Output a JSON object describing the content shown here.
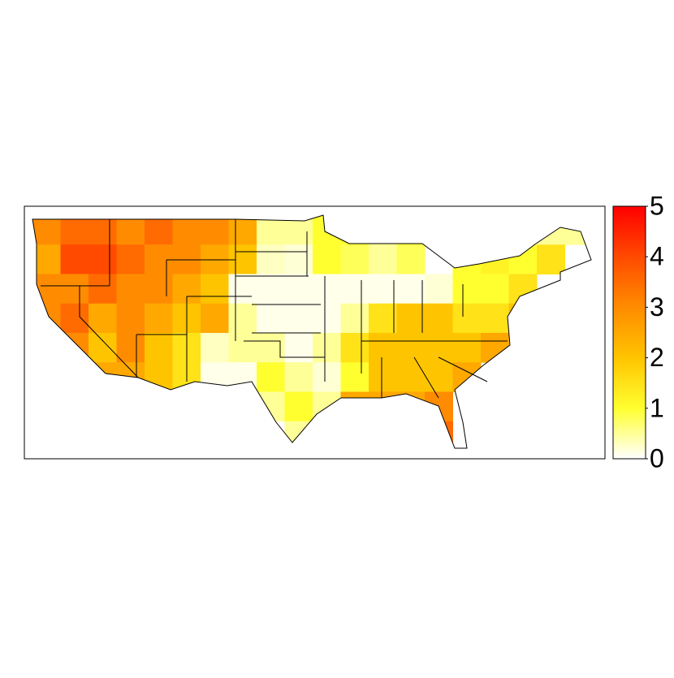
{
  "chart_data": {
    "type": "map",
    "values": [
      [
        3,
        3.5,
        3.5,
        3,
        3.5,
        3,
        3,
        2.5,
        0.5,
        0.5,
        1,
        1,
        0.5,
        1,
        null,
        null,
        null,
        null,
        0.5,
        0.5
      ],
      [
        2.5,
        4,
        4,
        3.5,
        3,
        3,
        2.5,
        2,
        0.3,
        0.2,
        1,
        0.8,
        0.5,
        0.8,
        null,
        1,
        1.2,
        1,
        1.5,
        null
      ],
      [
        3,
        3,
        3.5,
        3,
        3,
        2.5,
        2,
        0.1,
        0.1,
        0.1,
        0.1,
        0.1,
        0.1,
        0.1,
        0.2,
        1,
        1,
        1.5,
        null,
        null
      ],
      [
        3,
        3.5,
        2.5,
        3,
        2.5,
        2,
        2.5,
        0.5,
        0.1,
        0.1,
        0.1,
        0.5,
        1.5,
        2,
        2,
        1.5,
        1.5,
        2,
        null,
        null
      ],
      [
        3,
        3,
        2,
        3,
        2,
        1.5,
        0.3,
        0.5,
        0.5,
        0.1,
        0.5,
        1.5,
        2,
        2,
        2,
        2,
        2.5,
        null,
        null,
        null
      ],
      [
        null,
        3,
        2.5,
        2.5,
        2,
        1.5,
        0.1,
        0.1,
        1,
        0.5,
        0.2,
        1,
        2,
        2,
        2,
        2.5,
        null,
        null,
        null,
        null
      ],
      [
        null,
        null,
        null,
        null,
        null,
        null,
        null,
        0.1,
        0.5,
        1,
        0.5,
        2.5,
        2.5,
        2.5,
        3,
        null,
        null,
        null,
        null,
        null
      ],
      [
        null,
        null,
        null,
        null,
        null,
        null,
        null,
        null,
        null,
        0.5,
        null,
        null,
        null,
        null,
        3.5,
        null,
        null,
        null,
        null,
        null
      ]
    ],
    "colorscale": [
      "#ffffff",
      "#ffff30",
      "#ffc400",
      "#ff8c00",
      "#ff4a00",
      "#ff0000"
    ],
    "zlim": [
      0,
      5
    ],
    "zticks": [
      0,
      1,
      2,
      3,
      4,
      5
    ]
  }
}
